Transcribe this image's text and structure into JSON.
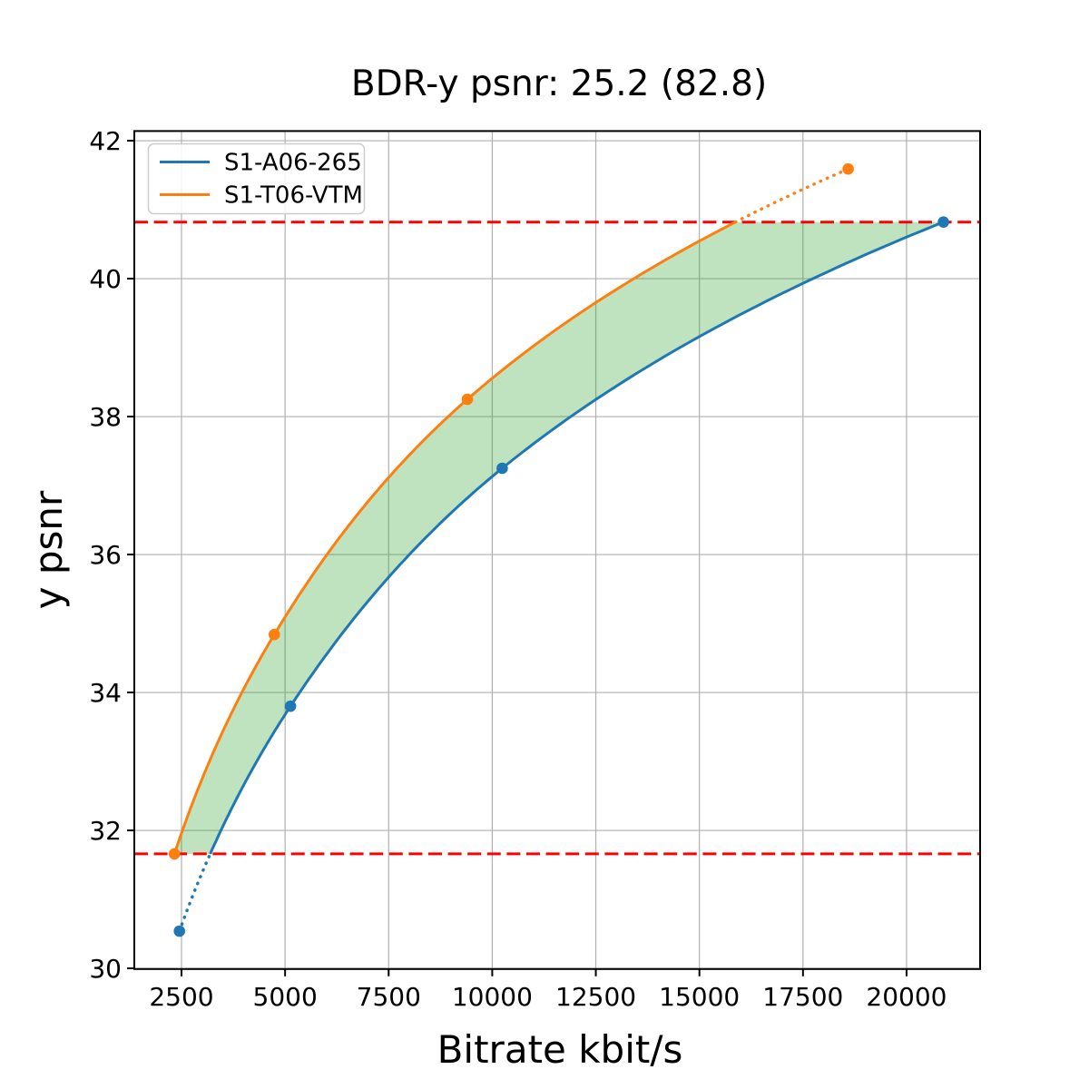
{
  "chart_data": {
    "type": "line",
    "title": "BDR-y psnr: 25.2 (82.8)",
    "xlabel": "Bitrate kbit/s",
    "ylabel": "y psnr",
    "xlim": [
      1361,
      21775
    ],
    "ylim": [
      29.99,
      42.14
    ],
    "xticks": [
      2500,
      5000,
      7500,
      10000,
      12500,
      15000,
      17500,
      20000
    ],
    "yticks": [
      30,
      32,
      34,
      36,
      38,
      40,
      42
    ],
    "grid": true,
    "grid_color": "#b0b0b0",
    "series": [
      {
        "name": "S1-A06-265",
        "color": "#1f77b4",
        "marker": "circle",
        "points": [
          [
            2450,
            30.54
          ],
          [
            5130,
            33.8
          ],
          [
            10240,
            37.25
          ],
          [
            20890,
            40.82
          ]
        ]
      },
      {
        "name": "S1-T06-VTM",
        "color": "#ff7f0e",
        "marker": "circle",
        "points": [
          [
            2330,
            31.66
          ],
          [
            4740,
            34.84
          ],
          [
            9400,
            38.25
          ],
          [
            18590,
            41.59
          ]
        ]
      }
    ],
    "overlap_bounds": {
      "values": [
        31.66,
        40.82
      ],
      "color": "#ff0000",
      "style": "dashed"
    },
    "fill_between": {
      "between": [
        "S1-T06-VTM",
        "S1-A06-265"
      ],
      "color_rgb": [
        44,
        160,
        44
      ],
      "alpha": 0.3
    },
    "legend": {
      "position": "upper-left",
      "entries": [
        "S1-A06-265",
        "S1-T06-VTM"
      ]
    }
  }
}
